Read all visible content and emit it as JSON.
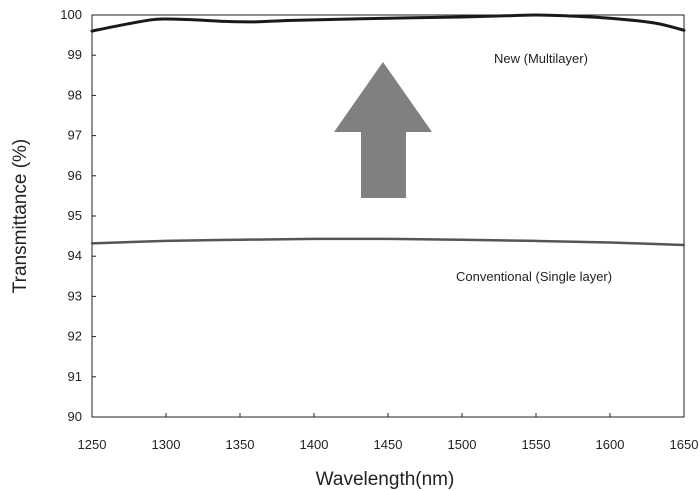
{
  "chart_data": {
    "type": "line",
    "xlabel": "Wavelength(nm)",
    "ylabel": "Transmittance (%)",
    "xlim": [
      1250,
      1650
    ],
    "ylim": [
      90,
      100
    ],
    "xticks": [
      "1250",
      "1300",
      "1350",
      "1400",
      "1450",
      "1500",
      "1550",
      "1600",
      "1650"
    ],
    "yticks": [
      "90",
      "91",
      "92",
      "93",
      "94",
      "95",
      "96",
      "97",
      "98",
      "99",
      "100"
    ],
    "grid": false,
    "legend": "none",
    "series": [
      {
        "name": "New (Multilayer)",
        "color": "#1a1a1a",
        "x": [
          1250,
          1270,
          1290,
          1300,
          1320,
          1340,
          1360,
          1380,
          1400,
          1450,
          1500,
          1530,
          1550,
          1570,
          1600,
          1630,
          1650
        ],
        "y": [
          99.6,
          99.75,
          99.88,
          99.9,
          99.88,
          99.84,
          99.83,
          99.86,
          99.88,
          99.92,
          99.95,
          99.98,
          100.0,
          99.98,
          99.92,
          99.8,
          99.62
        ]
      },
      {
        "name": "Conventional (Single layer)",
        "color": "#555555",
        "x": [
          1250,
          1300,
          1350,
          1400,
          1450,
          1500,
          1550,
          1600,
          1650
        ],
        "y": [
          94.32,
          94.38,
          94.41,
          94.43,
          94.43,
          94.41,
          94.38,
          94.34,
          94.28
        ]
      }
    ],
    "annotation": {
      "type": "up-arrow",
      "color": "#808080"
    }
  }
}
